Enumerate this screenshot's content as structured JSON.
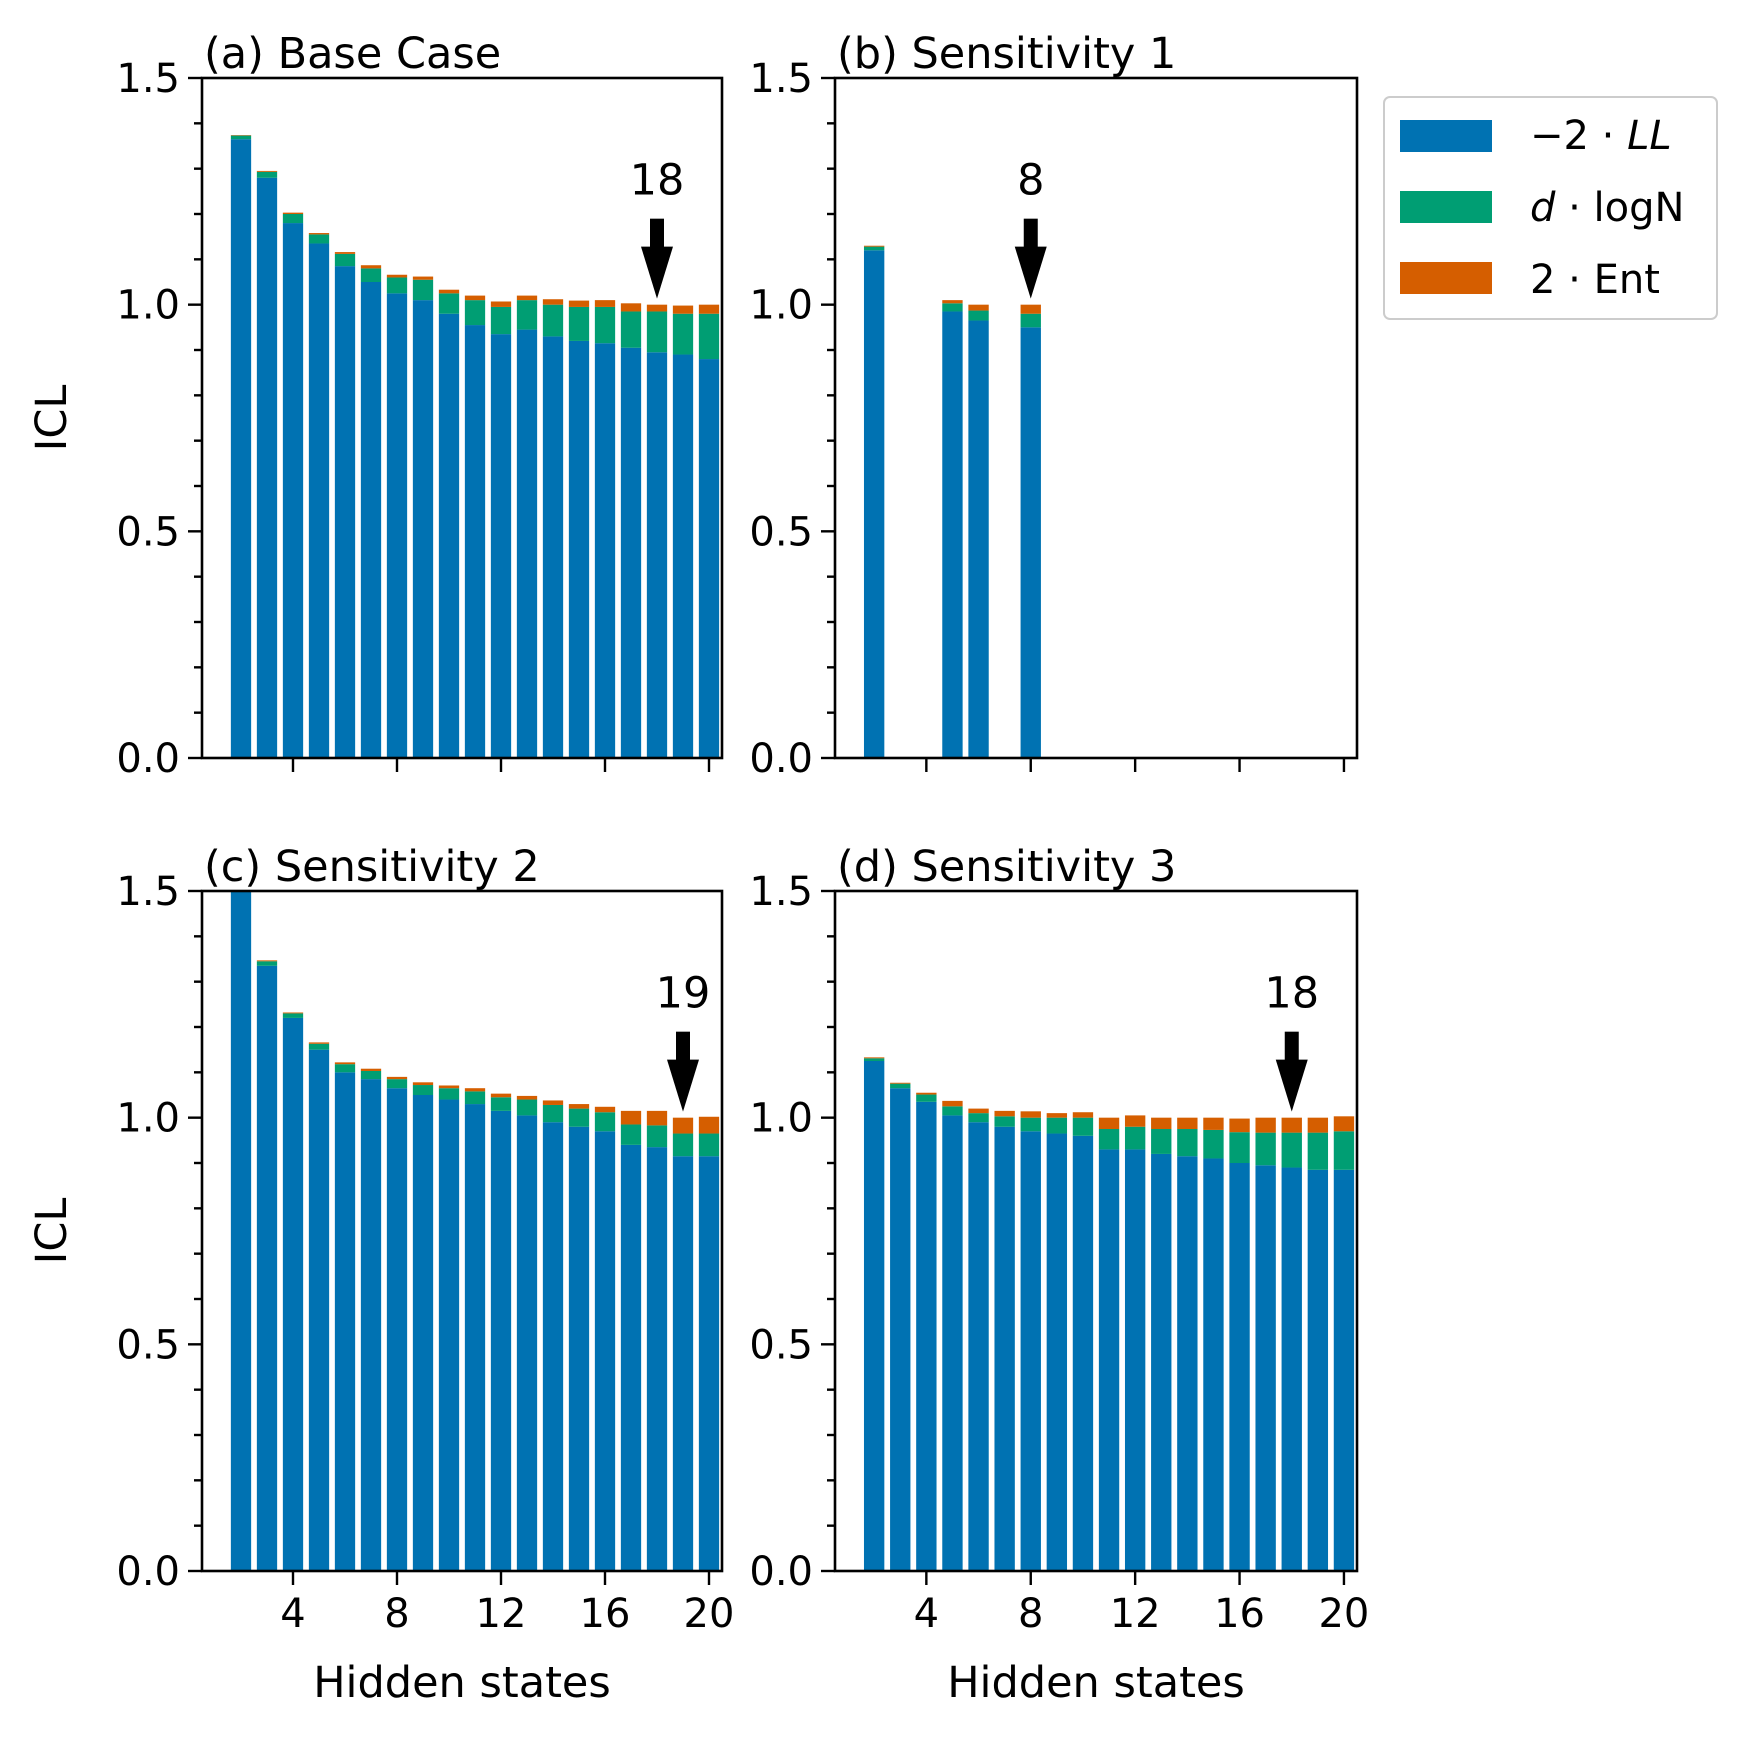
{
  "colors": {
    "neg2LL": "#0072B2",
    "dlogN": "#009E73",
    "ent": "#D55E00"
  },
  "legend": {
    "placement": "outside-top-right",
    "items": [
      {
        "key": "neg2LL",
        "pre": "−2 · ",
        "it": "LL",
        "post": ""
      },
      {
        "key": "dlogN",
        "pre": "",
        "it": "d",
        "post": " · logN"
      },
      {
        "key": "ent",
        "pre": "2 · Ent",
        "it": "",
        "post": ""
      }
    ]
  },
  "chart_data": [
    {
      "type": "bar",
      "title": "(a) Base Case",
      "xlabel": "",
      "ylabel": "ICL",
      "ylim": [
        0,
        1.5
      ],
      "xlim": [
        0.5,
        20.5
      ],
      "yticks": [
        "0.0",
        "0.5",
        "1.0",
        "1.5"
      ],
      "xticks": [
        4,
        8,
        12,
        16,
        20
      ],
      "show_xticklabels": false,
      "stacked": true,
      "categories": [
        2,
        3,
        4,
        5,
        6,
        7,
        8,
        9,
        10,
        11,
        12,
        13,
        14,
        15,
        16,
        17,
        18,
        19,
        20
      ],
      "series": [
        {
          "name": "−2·LL",
          "values": [
            1.365,
            1.28,
            1.18,
            1.135,
            1.085,
            1.05,
            1.025,
            1.01,
            0.98,
            0.955,
            0.935,
            0.945,
            0.93,
            0.92,
            0.915,
            0.905,
            0.895,
            0.89,
            0.88
          ]
        },
        {
          "name": "d·logN",
          "values": [
            0.008,
            0.013,
            0.02,
            0.02,
            0.027,
            0.03,
            0.035,
            0.045,
            0.045,
            0.055,
            0.06,
            0.065,
            0.07,
            0.075,
            0.08,
            0.08,
            0.09,
            0.09,
            0.1
          ]
        },
        {
          "name": "2·Ent",
          "values": [
            0.001,
            0.002,
            0.003,
            0.003,
            0.004,
            0.007,
            0.006,
            0.007,
            0.008,
            0.01,
            0.012,
            0.01,
            0.012,
            0.014,
            0.015,
            0.018,
            0.015,
            0.018,
            0.02
          ]
        }
      ],
      "annotation": {
        "text": "18",
        "x": 18
      }
    },
    {
      "type": "bar",
      "title": "(b) Sensitivity 1",
      "xlabel": "",
      "ylabel": "",
      "ylim": [
        0,
        1.5
      ],
      "xlim": [
        0.5,
        20.5
      ],
      "yticks": [
        "0.0",
        "0.5",
        "1.0",
        "1.5"
      ],
      "xticks": [
        4,
        8,
        12,
        16,
        20
      ],
      "show_xticklabels": false,
      "stacked": true,
      "categories": [
        2,
        5,
        6,
        8
      ],
      "series": [
        {
          "name": "−2·LL",
          "values": [
            1.12,
            0.985,
            0.965,
            0.95
          ]
        },
        {
          "name": "d·logN",
          "values": [
            0.008,
            0.018,
            0.022,
            0.03
          ]
        },
        {
          "name": "2·Ent",
          "values": [
            0.002,
            0.007,
            0.013,
            0.02
          ]
        }
      ],
      "annotation": {
        "text": "8",
        "x": 8
      }
    },
    {
      "type": "bar",
      "title": "(c) Sensitivity 2",
      "xlabel": "Hidden states",
      "ylabel": "ICL",
      "ylim": [
        0,
        1.5
      ],
      "xlim": [
        0.5,
        20.5
      ],
      "yticks": [
        "0.0",
        "0.5",
        "1.0",
        "1.5"
      ],
      "xticks": [
        4,
        8,
        12,
        16,
        20
      ],
      "show_xticklabels": true,
      "stacked": true,
      "categories": [
        2,
        3,
        4,
        5,
        6,
        7,
        8,
        9,
        10,
        11,
        12,
        13,
        14,
        15,
        16,
        17,
        18,
        19,
        20
      ],
      "series": [
        {
          "name": "−2·LL",
          "values": [
            1.5,
            1.335,
            1.22,
            1.15,
            1.1,
            1.085,
            1.065,
            1.05,
            1.04,
            1.03,
            1.015,
            1.005,
            0.99,
            0.98,
            0.97,
            0.94,
            0.935,
            0.915,
            0.915
          ]
        },
        {
          "name": "d·logN",
          "values": [
            0.0,
            0.01,
            0.01,
            0.013,
            0.018,
            0.018,
            0.02,
            0.022,
            0.025,
            0.028,
            0.03,
            0.035,
            0.038,
            0.04,
            0.042,
            0.045,
            0.048,
            0.05,
            0.05
          ]
        },
        {
          "name": "2·Ent",
          "values": [
            0.0,
            0.002,
            0.002,
            0.003,
            0.004,
            0.005,
            0.005,
            0.006,
            0.006,
            0.007,
            0.008,
            0.008,
            0.01,
            0.01,
            0.012,
            0.03,
            0.032,
            0.035,
            0.037
          ]
        }
      ],
      "annotation": {
        "text": "19",
        "x": 19
      }
    },
    {
      "type": "bar",
      "title": "(d) Sensitivity 3",
      "xlabel": "Hidden states",
      "ylabel": "",
      "ylim": [
        0,
        1.5
      ],
      "xlim": [
        0.5,
        20.5
      ],
      "yticks": [
        "0.0",
        "0.5",
        "1.0",
        "1.5"
      ],
      "xticks": [
        4,
        8,
        12,
        16,
        20
      ],
      "show_xticklabels": true,
      "stacked": true,
      "categories": [
        2,
        3,
        4,
        5,
        6,
        7,
        8,
        9,
        10,
        11,
        12,
        13,
        14,
        15,
        16,
        17,
        18,
        19,
        20
      ],
      "series": [
        {
          "name": "−2·LL",
          "values": [
            1.125,
            1.065,
            1.035,
            1.005,
            0.99,
            0.98,
            0.97,
            0.965,
            0.96,
            0.93,
            0.93,
            0.92,
            0.915,
            0.91,
            0.9,
            0.895,
            0.89,
            0.885,
            0.885
          ]
        },
        {
          "name": "d·logN",
          "values": [
            0.006,
            0.01,
            0.016,
            0.02,
            0.02,
            0.023,
            0.03,
            0.035,
            0.04,
            0.045,
            0.05,
            0.055,
            0.06,
            0.063,
            0.068,
            0.072,
            0.077,
            0.082,
            0.085
          ]
        },
        {
          "name": "2·Ent",
          "values": [
            0.002,
            0.002,
            0.004,
            0.012,
            0.01,
            0.012,
            0.014,
            0.01,
            0.012,
            0.025,
            0.025,
            0.025,
            0.025,
            0.027,
            0.03,
            0.033,
            0.033,
            0.033,
            0.033
          ]
        }
      ],
      "annotation": {
        "text": "18",
        "x": 18
      }
    }
  ]
}
